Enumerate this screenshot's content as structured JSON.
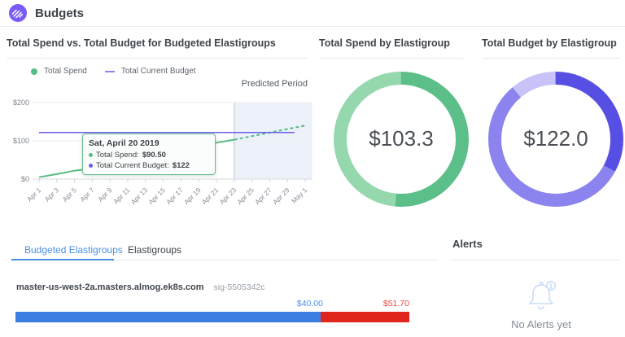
{
  "header": {
    "title": "Budgets"
  },
  "panels": {
    "spend_vs_budget": {
      "title": "Total Spend vs. Total Budget for Budgeted Elastigroups",
      "legend": {
        "spend": "Total Spend",
        "budget": "Total Current Budget"
      },
      "predicted_label": "Predicted Period",
      "tooltip": {
        "date": "Sat, April 20 2019",
        "spend_label": "Total Spend:",
        "spend_value": "$90.50",
        "budget_label": "Total Current Budget:",
        "budget_value": "$122"
      },
      "chart_data": {
        "type": "line",
        "x_tick_labels": [
          "Apr 1",
          "Apr 3",
          "Apr 5",
          "Apr 7",
          "Apr 9",
          "Apr 11",
          "Apr 13",
          "Apr 15",
          "Apr 17",
          "Apr 19",
          "Apr 21",
          "Apr 23",
          "Apr 25",
          "Apr 27",
          "Apr 29",
          "May 1"
        ],
        "x_tick_days": [
          1,
          3,
          5,
          7,
          9,
          11,
          13,
          15,
          17,
          19,
          21,
          23,
          25,
          27,
          29,
          31
        ],
        "y_tick_labels": [
          "$0",
          "$100",
          "$200"
        ],
        "ylim": [
          0,
          210
        ],
        "series": [
          {
            "name": "Total Spend",
            "style": "solid",
            "color": "#57bd84",
            "points": [
              [
                1,
                5
              ],
              [
                3,
                13
              ],
              [
                5,
                22
              ],
              [
                7,
                28
              ],
              [
                9,
                37
              ],
              [
                11,
                46
              ],
              [
                13,
                55
              ],
              [
                15,
                64
              ],
              [
                17,
                73
              ],
              [
                19,
                85
              ],
              [
                20,
                90.5
              ],
              [
                21,
                95
              ],
              [
                23,
                103
              ]
            ]
          },
          {
            "name": "Total Spend (predicted)",
            "style": "dashed",
            "color": "#57bd84",
            "points": [
              [
                23,
                103
              ],
              [
                31,
                140
              ]
            ]
          },
          {
            "name": "Total Current Budget",
            "style": "solid",
            "color": "#6a5fe8",
            "points": [
              [
                1,
                122
              ],
              [
                29.8,
                122
              ]
            ]
          }
        ],
        "marker": {
          "day": 20,
          "value": 90.5
        },
        "predicted_region": {
          "from_day": 23,
          "to_day": 31.8
        }
      }
    },
    "spend_donut": {
      "title": "Total Spend by Elastigroup",
      "value": "$103.3",
      "chart_data": {
        "type": "pie",
        "total_label": "$103.3",
        "segments": [
          {
            "share_pct": 51.5,
            "color": "#5cbe88"
          },
          {
            "share_pct": 48.5,
            "color": "#96d8ae"
          }
        ]
      }
    },
    "budget_donut": {
      "title": "Total Budget by Elastigroup",
      "value": "$122.0",
      "chart_data": {
        "type": "pie",
        "total_label": "$122.0",
        "segments": [
          {
            "share_pct": 33,
            "color": "#574fe3"
          },
          {
            "share_pct": 56,
            "color": "#8b83ee"
          },
          {
            "share_pct": 11,
            "color": "#c7c2f7"
          }
        ]
      }
    }
  },
  "tabs": [
    {
      "label": "Budgeted Elastigroups",
      "active": true
    },
    {
      "label": "Elastigroups",
      "active": false
    }
  ],
  "elastigroup_list": {
    "items": [
      {
        "name": "master-us-west-2a.masters.almog.ek8s.com",
        "sig": "sig-5505342c",
        "spend_label": "$40.00",
        "budget_label": "$51.70",
        "spend_value": 40.0,
        "total_value": 51.7,
        "spend_color": "#3d7ee3",
        "over_color": "#e0261c"
      }
    ]
  },
  "alerts": {
    "title": "Alerts",
    "empty_text": "No Alerts yet"
  }
}
